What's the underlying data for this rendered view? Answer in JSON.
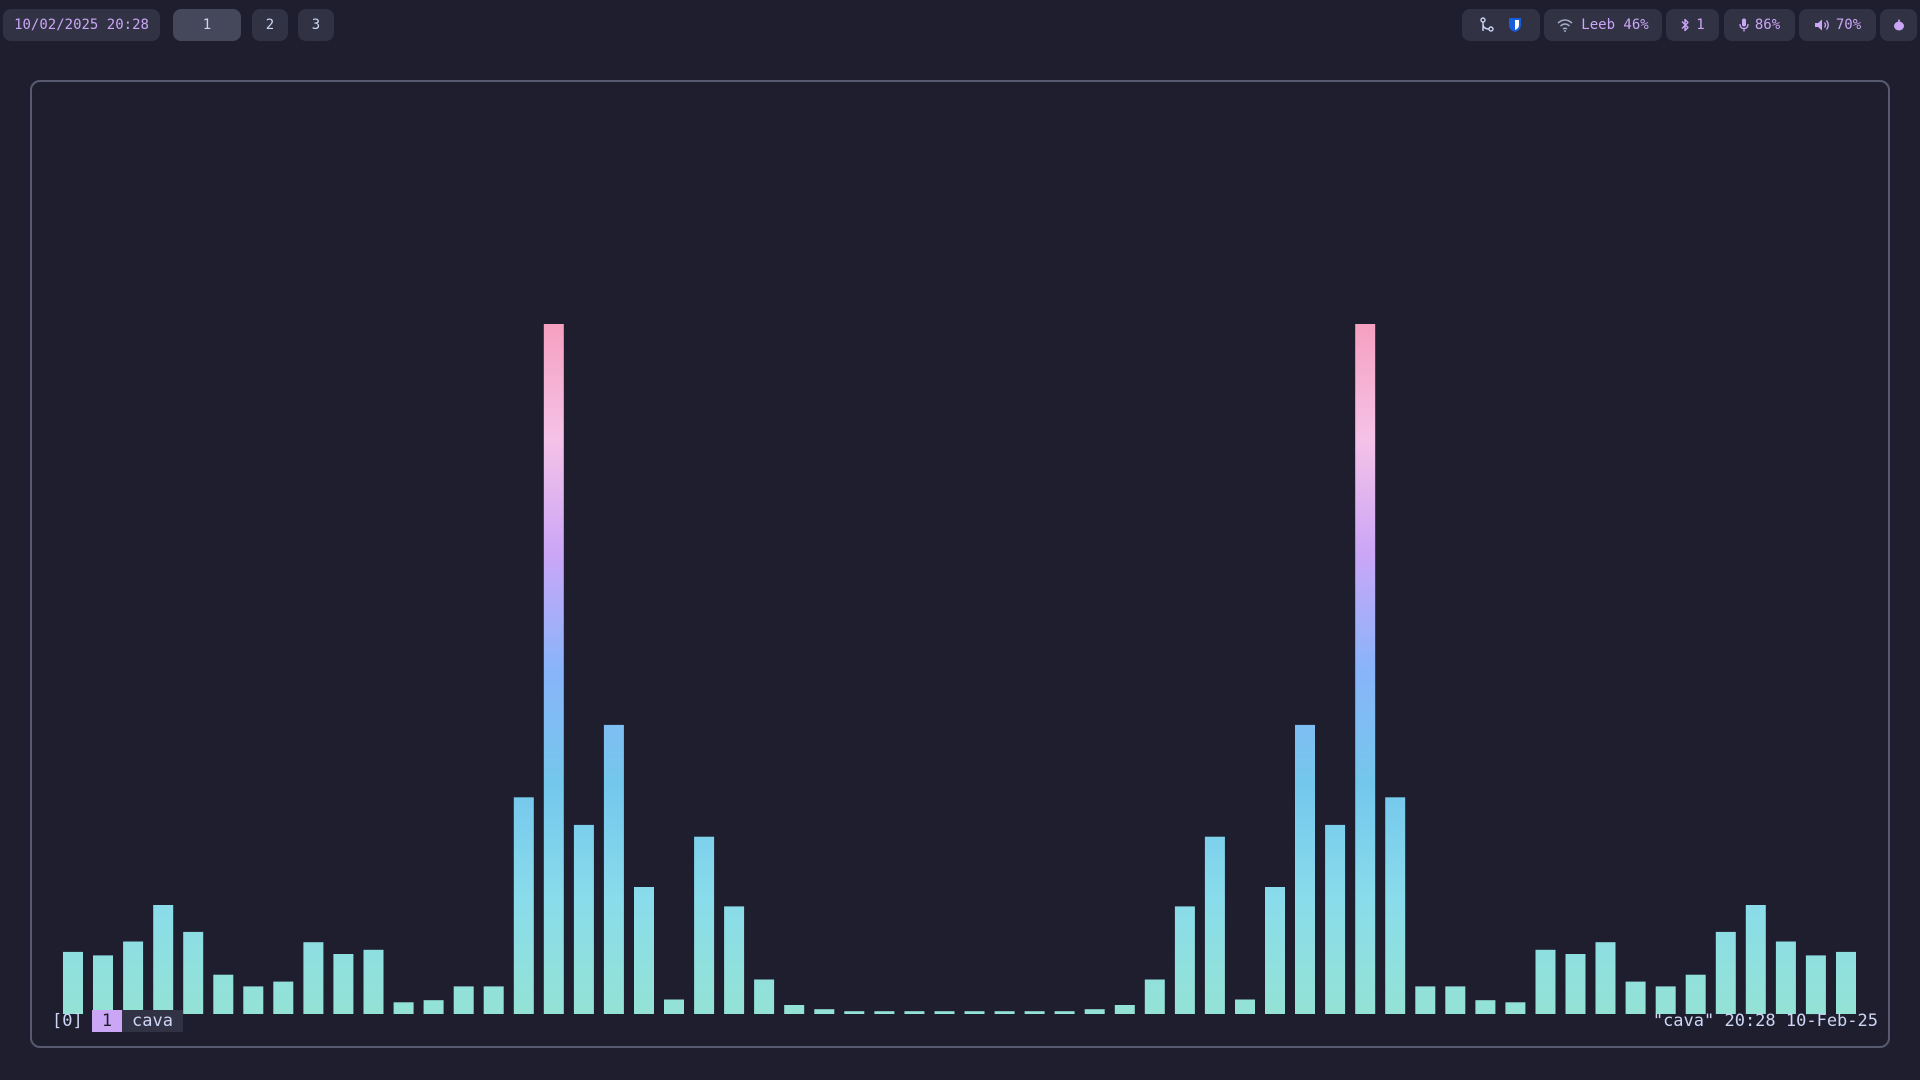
{
  "topbar": {
    "clock": "10/02/2025 20:28",
    "workspaces": [
      {
        "label": "1",
        "active": true
      },
      {
        "label": "2",
        "active": false
      },
      {
        "label": "3",
        "active": false
      }
    ],
    "tray_icons": [
      "git-merge-icon",
      "shield-icon"
    ],
    "wifi": {
      "icon": "wifi-icon",
      "label": "Leeb 46%"
    },
    "bluetooth": {
      "icon": "bluetooth-icon",
      "label": "1"
    },
    "mic": {
      "icon": "microphone-icon",
      "label": "86%"
    },
    "volume": {
      "icon": "speaker-icon",
      "label": "70%"
    },
    "power": {
      "icon": "power-icon"
    }
  },
  "terminal": {
    "app": "cava",
    "status": {
      "session": "[0]",
      "window_index": "1",
      "window_name": "cava",
      "right": "\"cava\" 20:28 10-Feb-25"
    }
  },
  "visualizer": {
    "bars": [
      0.09,
      0.085,
      0.105,
      0.158,
      0.119,
      0.057,
      0.04,
      0.047,
      0.104,
      0.087,
      0.093,
      0.017,
      0.02,
      0.04,
      0.04,
      0.314,
      1.0,
      0.274,
      0.419,
      0.184,
      0.021,
      0.257,
      0.156,
      0.05,
      0.013,
      0.007,
      0.004,
      0.004,
      0.004,
      0.004,
      0.004,
      0.004,
      0.004,
      0.004,
      0.007,
      0.013,
      0.05,
      0.156,
      0.257,
      0.021,
      0.184,
      0.419,
      0.274,
      1.0,
      0.314,
      0.04,
      0.04,
      0.02,
      0.017,
      0.093,
      0.087,
      0.104,
      0.047,
      0.04,
      0.057,
      0.119,
      0.158,
      0.105,
      0.085,
      0.09
    ],
    "gradient": [
      "#94e2d5",
      "#89dceb",
      "#74c7ec",
      "#89b4fa",
      "#cba6f7",
      "#f5c2e7",
      "#f5a0c0"
    ]
  }
}
